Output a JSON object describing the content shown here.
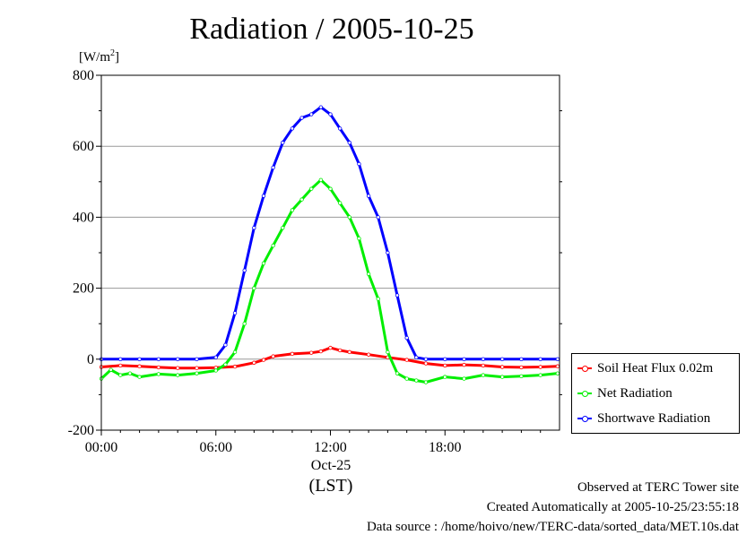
{
  "chart_data": {
    "type": "line",
    "title": "Radiation / 2005-10-25",
    "ylabel": "[W/m",
    "ylabel_sup": "2",
    "ylabel_close": "]",
    "xlabel": "(LST)",
    "x_date_label": "Oct-25",
    "xlim": [
      0,
      24
    ],
    "ylim": [
      -200,
      800
    ],
    "y_ticks": [
      -200,
      0,
      200,
      400,
      600,
      800
    ],
    "x_ticks": [
      {
        "value": 0,
        "label": "00:00"
      },
      {
        "value": 6,
        "label": "06:00"
      },
      {
        "value": 12,
        "label": "12:00"
      },
      {
        "value": 18,
        "label": "18:00"
      }
    ],
    "grid": "horizontal",
    "legend_position": "right",
    "series": [
      {
        "name": "Soil Heat Flux 0.02m",
        "color": "#ff0000",
        "x": [
          0,
          1,
          2,
          3,
          4,
          5,
          6,
          7,
          8,
          8.5,
          9,
          10,
          11,
          11.5,
          12,
          12.5,
          13,
          14,
          15,
          16,
          17,
          18,
          19,
          20,
          21,
          22,
          23,
          23.9
        ],
        "y": [
          -22,
          -18,
          -20,
          -23,
          -25,
          -25,
          -24,
          -21,
          -10,
          -2,
          8,
          15,
          18,
          22,
          32,
          25,
          20,
          13,
          5,
          -2,
          -12,
          -18,
          -16,
          -18,
          -22,
          -23,
          -22,
          -20
        ]
      },
      {
        "name": "Net Radiation",
        "color": "#00ee00",
        "x": [
          0,
          0.5,
          1,
          1.5,
          2,
          3,
          4,
          5,
          6,
          6.5,
          7,
          7.5,
          8,
          8.5,
          9,
          9.5,
          10,
          10.5,
          11,
          11.5,
          12,
          12.5,
          13,
          13.5,
          14,
          14.5,
          15,
          15.5,
          16,
          16.5,
          17,
          18,
          19,
          20,
          21,
          22,
          23,
          23.9
        ],
        "y": [
          -55,
          -30,
          -45,
          -40,
          -50,
          -42,
          -45,
          -40,
          -32,
          -15,
          20,
          100,
          200,
          270,
          320,
          370,
          420,
          450,
          480,
          505,
          480,
          440,
          400,
          340,
          240,
          170,
          20,
          -40,
          -55,
          -60,
          -65,
          -50,
          -55,
          -45,
          -50,
          -48,
          -45,
          -40
        ]
      },
      {
        "name": "Shortwave Radiation",
        "color": "#0000ff",
        "x": [
          0,
          1,
          2,
          3,
          4,
          5,
          6,
          6.5,
          7,
          7.5,
          8,
          8.5,
          9,
          9.5,
          10,
          10.5,
          11,
          11.5,
          12,
          12.5,
          13,
          13.5,
          14,
          14.5,
          15,
          15.5,
          16,
          16.5,
          17,
          18,
          19,
          20,
          21,
          22,
          23,
          23.9
        ],
        "y": [
          0,
          0,
          0,
          0,
          0,
          0,
          5,
          40,
          130,
          250,
          370,
          460,
          540,
          610,
          650,
          680,
          690,
          710,
          690,
          650,
          610,
          550,
          460,
          400,
          300,
          180,
          60,
          5,
          0,
          0,
          0,
          0,
          0,
          0,
          0,
          0
        ]
      }
    ]
  },
  "footer": {
    "line1": "Observed at TERC Tower site",
    "line2": "Created Automatically at 2005-10-25/23:55:18",
    "line3": "Data source : /home/hoivo/new/TERC-data/sorted_data/MET.10s.dat"
  }
}
